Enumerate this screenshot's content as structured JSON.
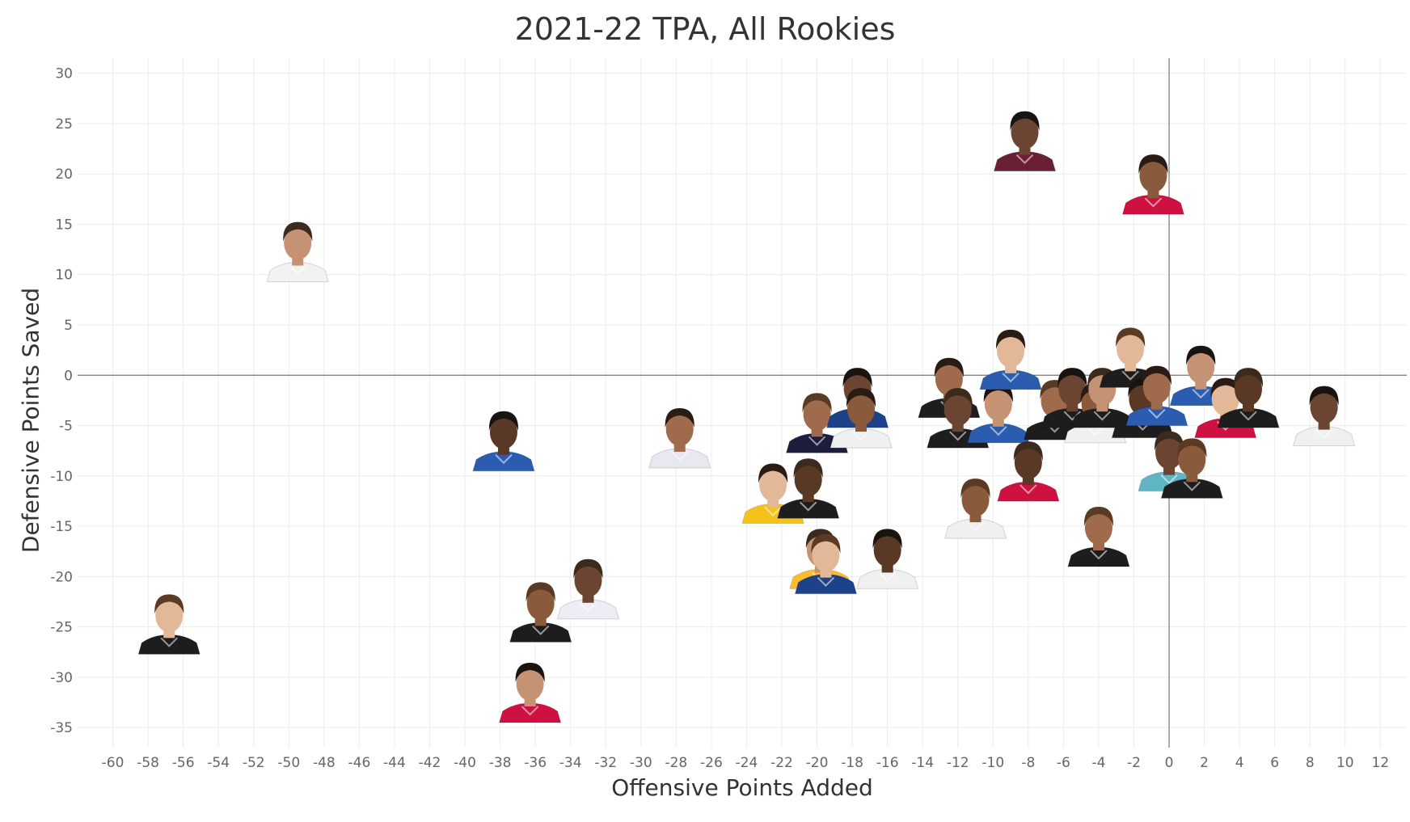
{
  "chart_data": {
    "type": "scatter",
    "title": "2021-22 TPA, All Rookies",
    "xlabel": "Offensive Points Added",
    "ylabel": "Defensive Points Saved",
    "xlim": [
      -62,
      13.5
    ],
    "ylim": [
      -37,
      31.5
    ],
    "xticks": [
      -60,
      -58,
      -56,
      -54,
      -52,
      -50,
      -48,
      -46,
      -44,
      -42,
      -40,
      -38,
      -36,
      -34,
      -32,
      -30,
      -28,
      -26,
      -24,
      -22,
      -20,
      -18,
      -16,
      -14,
      -12,
      -10,
      -8,
      -6,
      -4,
      -2,
      0,
      2,
      4,
      6,
      8,
      10,
      12
    ],
    "yticks": [
      30,
      25,
      20,
      15,
      10,
      5,
      0,
      -5,
      -10,
      -15,
      -20,
      -25,
      -30,
      -35
    ],
    "grid": true,
    "reference_lines": {
      "x": 0,
      "y": 0
    },
    "marker": "player-headshot",
    "points": [
      {
        "x": -8.2,
        "y": 23.5,
        "jersey": "#6a1f35"
      },
      {
        "x": -0.9,
        "y": 19.2,
        "jersey": "#ce1141"
      },
      {
        "x": -49.5,
        "y": 12.5,
        "jersey": "#f2f2f2"
      },
      {
        "x": -56.8,
        "y": -24.5,
        "jersey": "#1d1d1d"
      },
      {
        "x": -37.8,
        "y": -6.3,
        "jersey": "#2a5db0"
      },
      {
        "x": -27.8,
        "y": -6.0,
        "jersey": "#e8e8f0"
      },
      {
        "x": -33.0,
        "y": -21.0,
        "jersey": "#ededf5"
      },
      {
        "x": -35.7,
        "y": -23.3,
        "jersey": "#1d1d1d"
      },
      {
        "x": -36.3,
        "y": -31.3,
        "jersey": "#ce1141"
      },
      {
        "x": -22.5,
        "y": -11.5,
        "jersey": "#f4c21b"
      },
      {
        "x": -20.5,
        "y": -11.0,
        "jersey": "#1d1d1d"
      },
      {
        "x": -20.0,
        "y": -4.5,
        "jersey": "#1d1d3d"
      },
      {
        "x": -17.7,
        "y": -2.0,
        "jersey": "#1d428a"
      },
      {
        "x": -17.5,
        "y": -4.0,
        "jersey": "#f0f0f0"
      },
      {
        "x": -19.8,
        "y": -18.0,
        "jersey": "#fdbb30"
      },
      {
        "x": -19.5,
        "y": -18.5,
        "jersey": "#1d428a"
      },
      {
        "x": -16.0,
        "y": -18.0,
        "jersey": "#f0f0f0"
      },
      {
        "x": -12.5,
        "y": -1.0,
        "jersey": "#1d1d1d"
      },
      {
        "x": -12.0,
        "y": -4.0,
        "jersey": "#1d1d1d"
      },
      {
        "x": -11.0,
        "y": -13.0,
        "jersey": "#f0f0f0"
      },
      {
        "x": -9.7,
        "y": -3.5,
        "jersey": "#2a5db0"
      },
      {
        "x": -9.0,
        "y": 1.8,
        "jersey": "#2a5db0"
      },
      {
        "x": -8.0,
        "y": -9.3,
        "jersey": "#ce1141"
      },
      {
        "x": -6.5,
        "y": -3.2,
        "jersey": "#1d1d1d"
      },
      {
        "x": -5.5,
        "y": -2.0,
        "jersey": "#1d1d1d"
      },
      {
        "x": -4.2,
        "y": -3.5,
        "jersey": "#f0f0f0"
      },
      {
        "x": -3.8,
        "y": -2.0,
        "jersey": "#1d1d1d"
      },
      {
        "x": -2.2,
        "y": 2.0,
        "jersey": "#1d1d1d"
      },
      {
        "x": -1.5,
        "y": -3.0,
        "jersey": "#1d1d1d"
      },
      {
        "x": -0.7,
        "y": -1.8,
        "jersey": "#2a5db0"
      },
      {
        "x": 0.0,
        "y": -8.3,
        "jersey": "#5fb6c2"
      },
      {
        "x": 1.3,
        "y": -9.0,
        "jersey": "#1d1d1d"
      },
      {
        "x": 1.8,
        "y": 0.2,
        "jersey": "#2a5db0"
      },
      {
        "x": 3.2,
        "y": -3.0,
        "jersey": "#ce1141"
      },
      {
        "x": 4.5,
        "y": -2.0,
        "jersey": "#1d1d1d"
      },
      {
        "x": -4.0,
        "y": -15.8,
        "jersey": "#1d1d1d"
      },
      {
        "x": 8.8,
        "y": -3.8,
        "jersey": "#f0f0f0"
      }
    ]
  }
}
